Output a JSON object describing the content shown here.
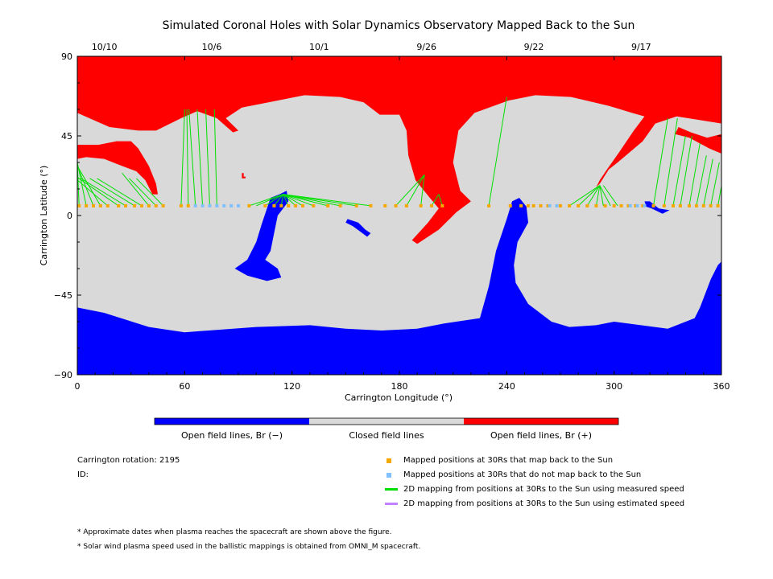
{
  "chart_data": {
    "type": "heatmap",
    "title": "Simulated Coronal Holes with Solar Dynamics Observatory Mapped Back to the Sun",
    "xlabel": "Carrington Longitude (°)",
    "ylabel": "Carrington Latitude (°)",
    "xlim": [
      0,
      360
    ],
    "ylim": [
      -90,
      90
    ],
    "x_ticks": [
      0,
      60,
      120,
      180,
      240,
      300,
      360
    ],
    "y_ticks": [
      -90,
      -45,
      0,
      45,
      90
    ],
    "x_tick_labels": [
      "0",
      "60",
      "120",
      "180",
      "240",
      "300",
      "360"
    ],
    "y_tick_labels": [
      "−90",
      "−45",
      "0",
      "45",
      "90"
    ],
    "top_axis_dates": [
      {
        "label": "10/10",
        "longitude": 30
      },
      {
        "label": "10/6",
        "longitude": 90
      },
      {
        "label": "10/1",
        "longitude": 150
      },
      {
        "label": "9/26",
        "longitude": 210
      },
      {
        "label": "9/22",
        "longitude": 270
      },
      {
        "label": "9/17",
        "longitude": 330
      }
    ],
    "colors": {
      "open_negative": "#0000ff",
      "closed": "#d9d9d9",
      "open_positive": "#ff0000",
      "mapped_back": "#f5a800",
      "not_mapped": "#80c0ff",
      "measured_speed": "#00e000",
      "estimated_speed": "#c080ff"
    },
    "regions": [
      {
        "name": "north_positive_polar",
        "polarity": "positive",
        "polygon": [
          [
            0,
            90
          ],
          [
            360,
            90
          ],
          [
            360,
            52
          ],
          [
            335,
            56
          ],
          [
            323,
            52
          ],
          [
            316,
            42
          ],
          [
            302,
            30
          ],
          [
            297,
            26
          ],
          [
            292,
            18
          ],
          [
            290,
            16
          ],
          [
            292,
            20
          ],
          [
            296,
            26
          ],
          [
            303,
            36
          ],
          [
            311,
            48
          ],
          [
            317,
            56
          ],
          [
            310,
            58
          ],
          [
            297,
            62
          ],
          [
            276,
            67
          ],
          [
            256,
            68
          ],
          [
            241,
            65
          ],
          [
            222,
            58
          ],
          [
            213,
            48
          ],
          [
            210,
            30
          ],
          [
            214,
            14
          ],
          [
            220,
            8
          ],
          [
            212,
            2
          ],
          [
            202,
            -8
          ],
          [
            190,
            -16
          ],
          [
            187,
            -14
          ],
          [
            196,
            -4
          ],
          [
            202,
            4
          ],
          [
            197,
            10
          ],
          [
            189,
            20
          ],
          [
            185,
            34
          ],
          [
            184,
            48
          ],
          [
            180,
            57
          ],
          [
            169,
            57
          ],
          [
            160,
            64
          ],
          [
            147,
            67
          ],
          [
            127,
            68
          ],
          [
            112,
            65
          ],
          [
            92,
            61
          ],
          [
            83,
            55
          ],
          [
            90,
            48
          ],
          [
            87,
            47
          ],
          [
            78,
            55
          ],
          [
            67,
            59
          ],
          [
            58,
            55
          ],
          [
            44,
            48
          ],
          [
            34,
            48
          ],
          [
            18,
            50
          ],
          [
            0,
            58
          ]
        ]
      },
      {
        "name": "north_positive_tongue_left",
        "polarity": "positive",
        "polygon": [
          [
            0,
            40
          ],
          [
            12,
            40
          ],
          [
            22,
            42
          ],
          [
            30,
            42
          ],
          [
            34,
            38
          ],
          [
            40,
            28
          ],
          [
            44,
            18
          ],
          [
            45,
            12
          ],
          [
            42,
            12
          ],
          [
            38,
            20
          ],
          [
            33,
            25
          ],
          [
            25,
            28
          ],
          [
            15,
            32
          ],
          [
            5,
            33
          ],
          [
            0,
            32
          ]
        ]
      },
      {
        "name": "north_positive_tongue_right",
        "polarity": "positive",
        "polygon": [
          [
            334,
            46
          ],
          [
            342,
            44
          ],
          [
            353,
            38
          ],
          [
            360,
            35
          ],
          [
            360,
            46
          ],
          [
            352,
            44
          ],
          [
            343,
            47
          ],
          [
            336,
            50
          ]
        ]
      },
      {
        "name": "north_positive_speck",
        "polarity": "positive",
        "polygon": [
          [
            92,
            24
          ],
          [
            93,
            24
          ],
          [
            93,
            22
          ],
          [
            94,
            22
          ],
          [
            94,
            21
          ],
          [
            92,
            21
          ]
        ]
      },
      {
        "name": "south_negative_polar",
        "polarity": "negative",
        "polygon": [
          [
            0,
            -52
          ],
          [
            15,
            -55
          ],
          [
            40,
            -63
          ],
          [
            60,
            -66
          ],
          [
            100,
            -63
          ],
          [
            130,
            -62
          ],
          [
            150,
            -64
          ],
          [
            170,
            -65
          ],
          [
            190,
            -64
          ],
          [
            205,
            -61
          ],
          [
            225,
            -58
          ],
          [
            230,
            -40
          ],
          [
            234,
            -20
          ],
          [
            240,
            -2
          ],
          [
            243,
            8
          ],
          [
            247,
            10
          ],
          [
            251,
            5
          ],
          [
            252,
            -4
          ],
          [
            246,
            -15
          ],
          [
            244,
            -28
          ],
          [
            245,
            -38
          ],
          [
            252,
            -50
          ],
          [
            265,
            -60
          ],
          [
            275,
            -63
          ],
          [
            290,
            -62
          ],
          [
            300,
            -60
          ],
          [
            330,
            -64
          ],
          [
            345,
            -58
          ],
          [
            348,
            -52
          ],
          [
            354,
            -36
          ],
          [
            358,
            -28
          ],
          [
            360,
            -26
          ],
          [
            360,
            -90
          ],
          [
            0,
            -90
          ]
        ]
      },
      {
        "name": "central_negative_hole",
        "polarity": "negative",
        "polygon": [
          [
            88,
            -30
          ],
          [
            95,
            -25
          ],
          [
            100,
            -15
          ],
          [
            103,
            -5
          ],
          [
            108,
            10
          ],
          [
            113,
            12
          ],
          [
            117,
            14
          ],
          [
            118,
            8
          ],
          [
            115,
            4
          ],
          [
            112,
            0
          ],
          [
            110,
            -10
          ],
          [
            108,
            -20
          ],
          [
            105,
            -25
          ],
          [
            112,
            -30
          ],
          [
            114,
            -35
          ],
          [
            106,
            -37
          ],
          [
            95,
            -34
          ]
        ]
      },
      {
        "name": "small_negative_hole",
        "polarity": "negative",
        "polygon": [
          [
            151,
            -2
          ],
          [
            157,
            -4
          ],
          [
            161,
            -8
          ],
          [
            164,
            -10
          ],
          [
            162,
            -12
          ],
          [
            158,
            -9
          ],
          [
            154,
            -6
          ],
          [
            150,
            -4
          ]
        ]
      },
      {
        "name": "negative_speck_right",
        "polarity": "negative",
        "polygon": [
          [
            317,
            8
          ],
          [
            320,
            8
          ],
          [
            325,
            4
          ],
          [
            331,
            3
          ],
          [
            327,
            1
          ],
          [
            321,
            4
          ],
          [
            318,
            5
          ]
        ]
      }
    ],
    "series": [
      {
        "name": "Mapped positions at 30Rs that map back to the Sun",
        "marker": "square",
        "latitude": 5.5,
        "longitudes": [
          1,
          5,
          9,
          13,
          17,
          23,
          27,
          32,
          36,
          40,
          44,
          48,
          58,
          62,
          96,
          105,
          110,
          114,
          118,
          122,
          126,
          132,
          140,
          147,
          156,
          164,
          172,
          178,
          184,
          192,
          198,
          204,
          230,
          242,
          248,
          252,
          255,
          259,
          263,
          270,
          275,
          280,
          285,
          290,
          295,
          300,
          304,
          308,
          312,
          316,
          322,
          328,
          333,
          337,
          342,
          346,
          350,
          354,
          358
        ]
      },
      {
        "name": "Mapped positions at 30Rs that do not map back to the Sun",
        "marker": "square",
        "latitude": 5.5,
        "longitudes": [
          66,
          70,
          74,
          78,
          82,
          86,
          90,
          264,
          268,
          309,
          313,
          317
        ]
      },
      {
        "name": "2D mapping from positions at 30Rs to the Sun using measured speed",
        "line": "measured",
        "links": [
          [
            1,
            30
          ],
          [
            5,
            30
          ],
          [
            9,
            28
          ],
          [
            13,
            28
          ],
          [
            17,
            27
          ],
          [
            23,
            23
          ],
          [
            27,
            21
          ],
          [
            32,
            21
          ],
          [
            36,
            21
          ],
          [
            40,
            24
          ],
          [
            44,
            21
          ],
          [
            48,
            21
          ],
          [
            58,
            60
          ],
          [
            62,
            60
          ],
          [
            66,
            60
          ],
          [
            70,
            60
          ],
          [
            74,
            60
          ],
          [
            78,
            60
          ],
          [
            96,
            12
          ],
          [
            100,
            12
          ],
          [
            105,
            12
          ],
          [
            110,
            12
          ],
          [
            114,
            12
          ],
          [
            118,
            12
          ],
          [
            122,
            12
          ],
          [
            126,
            12
          ],
          [
            132,
            12
          ],
          [
            140,
            12
          ],
          [
            147,
            12
          ],
          [
            156,
            12
          ],
          [
            164,
            12
          ],
          [
            178,
            23
          ],
          [
            184,
            23
          ],
          [
            192,
            23
          ],
          [
            198,
            12
          ],
          [
            204,
            12
          ],
          [
            230,
            67
          ],
          [
            275,
            17
          ],
          [
            280,
            17
          ],
          [
            285,
            17
          ],
          [
            290,
            17
          ],
          [
            294,
            17
          ],
          [
            298,
            17
          ],
          [
            302,
            17
          ],
          [
            322,
            55
          ],
          [
            328,
            55
          ],
          [
            333,
            45
          ],
          [
            337,
            45
          ],
          [
            342,
            41
          ],
          [
            346,
            34
          ],
          [
            350,
            32
          ],
          [
            354,
            30
          ],
          [
            358,
            30
          ]
        ]
      },
      {
        "name": "2D mapping from positions at 30Rs to the Sun using estimated speed",
        "line": "estimated",
        "links": []
      }
    ],
    "colorbar": [
      "Open field lines, Br (−)",
      "Closed field lines",
      "Open field lines, Br (+)"
    ]
  },
  "info": {
    "carrington_rotation": "Carrington rotation: 2195",
    "id": "ID:"
  },
  "legend": [
    {
      "label": "Mapped positions at 30Rs that map back to the Sun",
      "color": "#f5a800",
      "kind": "square"
    },
    {
      "label": "Mapped positions at 30Rs that do not map back to the Sun",
      "color": "#80c0ff",
      "kind": "square"
    },
    {
      "label": "2D mapping from positions at 30Rs to the Sun using measured speed",
      "color": "#00e000",
      "kind": "line"
    },
    {
      "label": "2D mapping from positions at 30Rs to the Sun using estimated speed",
      "color": "#c080ff",
      "kind": "line"
    }
  ],
  "notes": [
    "* Approximate dates when plasma reaches the spacecraft are shown above the figure.",
    "* Solar wind plasma speed used in the ballistic mappings is obtained from OMNI_M spacecraft."
  ]
}
